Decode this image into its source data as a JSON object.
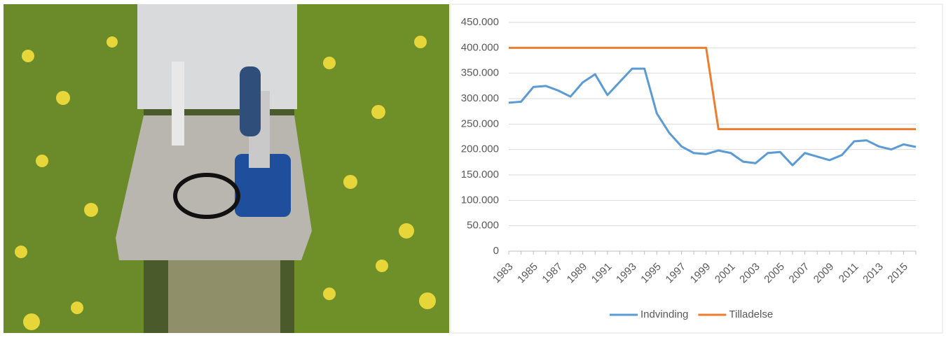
{
  "chart_data": {
    "type": "line",
    "categories": [
      "1983",
      null,
      "1985",
      null,
      "1987",
      null,
      "1989",
      null,
      "1991",
      null,
      "1993",
      null,
      "1995",
      null,
      "1997",
      null,
      "1999",
      null,
      "2001",
      null,
      "2003",
      null,
      "2005",
      null,
      "2007",
      null,
      "2009",
      null,
      "2011",
      null,
      "2013",
      null,
      "2015",
      null
    ],
    "series": [
      {
        "name": "Indvinding",
        "color": "#5b9bd5",
        "values": [
          292000,
          294000,
          323000,
          325000,
          316000,
          304000,
          332000,
          348000,
          307000,
          333000,
          359000,
          359000,
          271000,
          233000,
          206000,
          193000,
          191000,
          198000,
          193000,
          176000,
          173000,
          193000,
          195000,
          169000,
          193000,
          186000,
          179000,
          189000,
          216000,
          218000,
          206000,
          200000,
          210000,
          205000
        ]
      },
      {
        "name": "Tilladelse",
        "color": "#ed7d31",
        "values": [
          400000,
          400000,
          400000,
          400000,
          400000,
          400000,
          400000,
          400000,
          400000,
          400000,
          400000,
          400000,
          400000,
          400000,
          400000,
          400000,
          400000,
          240000,
          240000,
          240000,
          240000,
          240000,
          240000,
          240000,
          240000,
          240000,
          240000,
          240000,
          240000,
          240000,
          240000,
          240000,
          240000,
          240000
        ]
      }
    ],
    "ylim": [
      0,
      450000
    ],
    "yticks": [
      0,
      {
        "value": 50000,
        "label": "50.000"
      },
      {
        "value": 100000,
        "label": "100.000"
      },
      {
        "value": 150000,
        "label": "150.000"
      },
      {
        "value": 200000,
        "label": "200.000"
      },
      {
        "value": 250000,
        "label": "250.000"
      },
      {
        "value": 300000,
        "label": "300.000"
      },
      {
        "value": 350000,
        "label": "350.000"
      },
      {
        "value": 400000,
        "label": "400.000"
      },
      {
        "value": 450000,
        "label": "450.000"
      }
    ],
    "grid": true,
    "legend": "bottom"
  }
}
